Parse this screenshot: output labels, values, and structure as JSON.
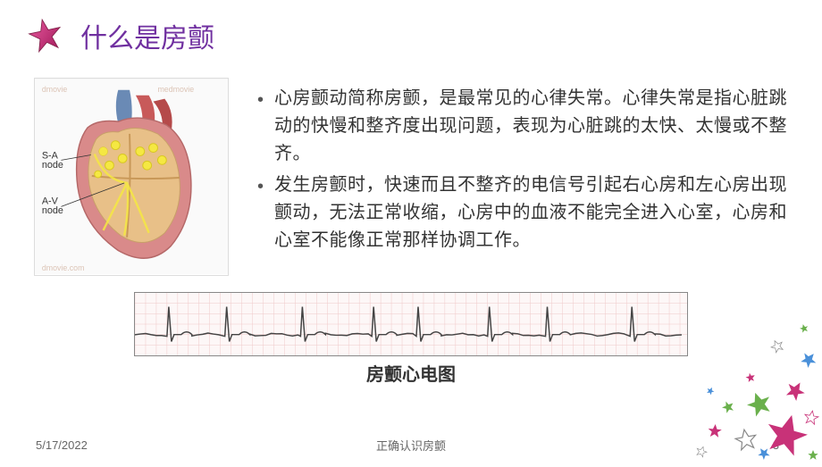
{
  "title": "什么是房颤",
  "bullets": [
    "心房颤动简称房颤，是最常见的心律失常。心律失常是指心脏跳动的快慢和整齐度出现问题，表现为心脏跳的太快、太慢或不整齐。",
    "发生房颤时，快速而且不整齐的电信号引起右心房和左心房出现颤动，无法正常收缩，心房中的血液不能完全进入心室，心房和心室不能像正常那样协调工作。"
  ],
  "heart_diagram": {
    "watermark": "medmovie",
    "labels": {
      "sa": "S-A node",
      "av": "A-V node"
    },
    "colors": {
      "outer": "#d98a8a",
      "inner": "#e8c088",
      "vessel": "#6a8ab5",
      "artery": "#c85a5a",
      "signal": "#f5e842"
    }
  },
  "ecg": {
    "caption": "房颤心电图",
    "grid_color": "#f0c8c8",
    "line_color": "#444444",
    "background": "#fdf7f7",
    "beats": [
      40,
      105,
      190,
      270,
      320,
      400,
      465,
      560
    ]
  },
  "footer": {
    "date": "5/17/2022",
    "subtitle": "正确认识房颤",
    "page": "3"
  },
  "star_colors": {
    "main": "#c83278",
    "green": "#6ab04c",
    "blue": "#4a90d9",
    "outline": "#888"
  }
}
